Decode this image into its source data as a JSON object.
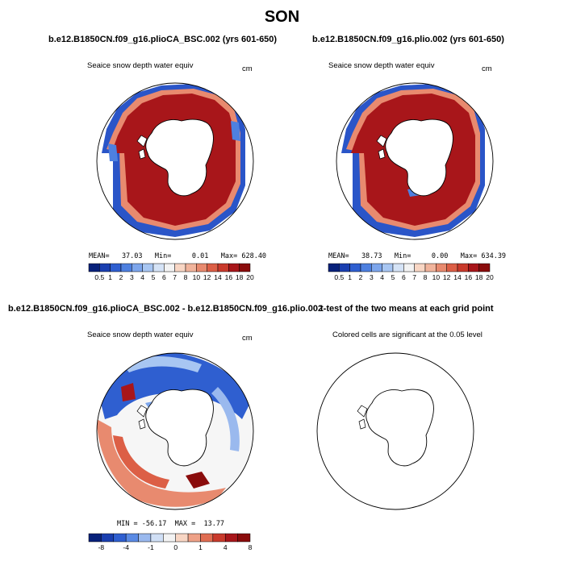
{
  "season": "SON",
  "panels": {
    "p1": {
      "title": "b.e12.B1850CN.f09_g16.plioCA_BSC.002 (yrs 601-650)",
      "variable": "Seaice snow depth water equiv",
      "units": "cm",
      "stats": "MEAN=   37.03   Min=     0.01   Max= 628.40"
    },
    "p2": {
      "title": "b.e12.B1850CN.f09_g16.plio.002 (yrs 601-650)",
      "variable": "Seaice snow depth water equiv",
      "units": "cm",
      "stats": "MEAN=   38.73   Min=     0.00   Max= 634.39"
    },
    "p3": {
      "title": "b.e12.B1850CN.f09_g16.plioCA_BSC.002 - b.e12.B1850CN.f09_g16.plio.002",
      "variable": "Seaice snow depth water equiv",
      "units": "cm",
      "stats": "MIN = -56.17  MAX =  13.77"
    },
    "p4": {
      "title": "t-test of the two means at each grid point",
      "note": "Colored cells are significant at the 0.05 level"
    }
  },
  "chart_data": [
    {
      "type": "heatmap",
      "title": "b.e12.B1850CN.f09_g16.plioCA_BSC.002 (yrs 601-650)",
      "projection": "south polar stereographic",
      "variable": "Seaice snow depth water equiv",
      "units": "cm",
      "mean": 37.03,
      "min": 0.01,
      "max": 628.4,
      "colorbar_labels": [
        "0.5",
        "1",
        "2",
        "3",
        "4",
        "5",
        "6",
        "7",
        "8",
        "10",
        "12",
        "14",
        "16",
        "18",
        "20"
      ]
    },
    {
      "type": "heatmap",
      "title": "b.e12.B1850CN.f09_g16.plio.002 (yrs 601-650)",
      "projection": "south polar stereographic",
      "variable": "Seaice snow depth water equiv",
      "units": "cm",
      "mean": 38.73,
      "min": 0.0,
      "max": 634.39,
      "colorbar_labels": [
        "0.5",
        "1",
        "2",
        "3",
        "4",
        "5",
        "6",
        "7",
        "8",
        "10",
        "12",
        "14",
        "16",
        "18",
        "20"
      ]
    },
    {
      "type": "heatmap",
      "title": "b.e12.B1850CN.f09_g16.plioCA_BSC.002 - b.e12.B1850CN.f09_g16.plio.002",
      "projection": "south polar stereographic",
      "variable": "Seaice snow depth water equiv",
      "units": "cm",
      "min": -56.17,
      "max": 13.77,
      "colorbar_labels": [
        "-8",
        "-4",
        "-1",
        "0",
        "1",
        "4",
        "8"
      ]
    },
    {
      "type": "heatmap",
      "title": "t-test of the two means at each grid point",
      "note": "Colored cells are significant at the 0.05 level",
      "significant_cells": 0
    }
  ],
  "colors": {
    "seq": [
      "#08217a",
      "#1a3fb0",
      "#2f5fd0",
      "#4e80e0",
      "#7da6ec",
      "#a8c6f2",
      "#d5e3f6",
      "#f3f3f3",
      "#f8d6c4",
      "#f1b49c",
      "#e88a6f",
      "#dc5f46",
      "#c93a2c",
      "#a8161a",
      "#8a0c0c"
    ],
    "div": [
      "#08217a",
      "#1a3fb0",
      "#2f5fd0",
      "#5a8ae4",
      "#9ab9ee",
      "#d0dff5",
      "#f3f3f3",
      "#f8d6c4",
      "#eea187",
      "#e06d52",
      "#c93a2c",
      "#a8161a",
      "#8a0c0c"
    ]
  }
}
